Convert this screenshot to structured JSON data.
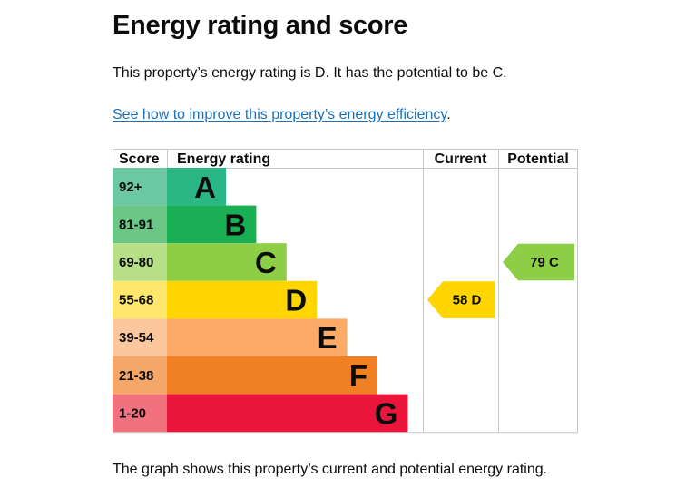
{
  "page": {
    "title": "Energy rating and score",
    "intro": "This property’s energy rating is D. It has the potential to be C.",
    "link_text": "See how to improve this property’s energy efficiency",
    "link_suffix": ".",
    "footer": "The graph shows this property’s current and potential energy rating."
  },
  "chart_data": {
    "type": "bar",
    "headers": {
      "score": "Score",
      "rating": "Energy rating",
      "current": "Current",
      "potential": "Potential"
    },
    "bands": [
      {
        "letter": "A",
        "range": "92+",
        "color": "#2bb686",
        "score_bg": "#6cc8a2"
      },
      {
        "letter": "B",
        "range": "81-91",
        "color": "#1aaf54",
        "score_bg": "#6cc686"
      },
      {
        "letter": "C",
        "range": "69-80",
        "color": "#8dce46",
        "score_bg": "#b6df88"
      },
      {
        "letter": "D",
        "range": "55-68",
        "color": "#ffd500",
        "score_bg": "#ffe66c"
      },
      {
        "letter": "E",
        "range": "39-54",
        "color": "#fcaa65",
        "score_bg": "#fdc79d"
      },
      {
        "letter": "F",
        "range": "21-38",
        "color": "#ef8023",
        "score_bg": "#f5a76a"
      },
      {
        "letter": "G",
        "range": "1-20",
        "color": "#e9153b",
        "score_bg": "#f2717f"
      }
    ],
    "current": {
      "value": 58,
      "letter": "D",
      "label": "58  D",
      "color": "#ffd500"
    },
    "potential": {
      "value": 79,
      "letter": "C",
      "label": "79  C",
      "color": "#8dce46"
    }
  }
}
